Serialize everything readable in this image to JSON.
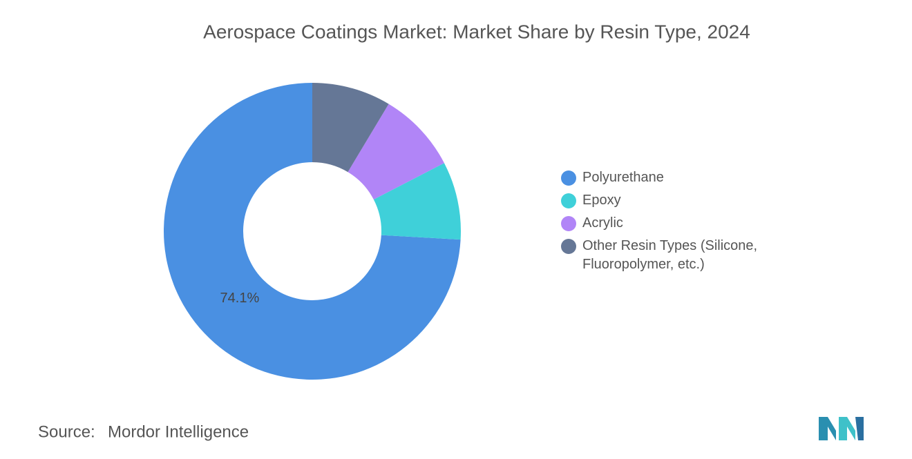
{
  "chart_data": {
    "type": "donut",
    "title": "Aerospace Coatings Market: Market Share by Resin Type, 2024",
    "categories": [
      "Polyurethane",
      "Epoxy",
      "Acrylic",
      "Other Resin Types (Silicone, Fluoropolymer, etc.)"
    ],
    "values": [
      74.1,
      8.5,
      8.8,
      8.6
    ],
    "value_labels": [
      "74.1%",
      null,
      null,
      null
    ],
    "colors": [
      "#4a90e2",
      "#3fd0d9",
      "#b185f7",
      "#657796"
    ],
    "source_label": "Source:",
    "source": "Mordor Intelligence"
  }
}
